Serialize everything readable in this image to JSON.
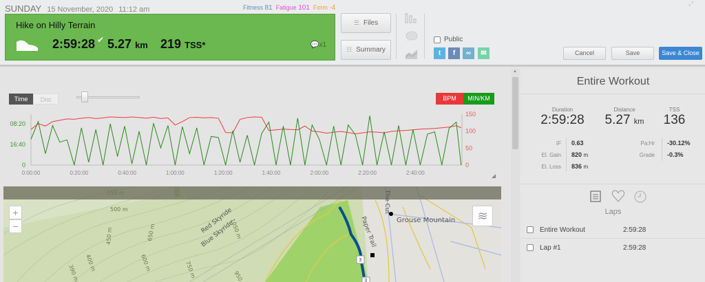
{
  "header": {
    "day": "SUNDAY",
    "date": "15 November, 2020",
    "time": "11:12 am",
    "fitness_label": "Fitness",
    "fitness": "81",
    "fatigue_label": "Fatigue",
    "fatigue": "101",
    "form_label": "Form",
    "form": "-4",
    "colors": {
      "fitness": "#6a8fb5",
      "fatigue": "#e44fd8",
      "form": "#f0a030"
    }
  },
  "workout": {
    "title": "Hike on Hilly Terrain",
    "duration": "2:59:28",
    "distance": "5.27",
    "distance_unit": "km",
    "tss": "219",
    "tss_unit": "TSS*",
    "comments": "x1",
    "card_color": "#6ab84f",
    "sport_icon": "shoe-icon"
  },
  "toolbar": {
    "files": "Files",
    "summary": "Summary",
    "public": "Public",
    "cancel": "Cancel",
    "save": "Save",
    "save_close": "Save & Close"
  },
  "chart_controls": {
    "time": "Time",
    "dist": "Dist",
    "bpm": "BPM",
    "pace": "MIN/KM"
  },
  "chart_data": {
    "type": "line",
    "xlabel": "",
    "x_ticks": [
      "0:00:00",
      "0:20:00",
      "0:40:00",
      "1:00:00",
      "1:20:00",
      "1:40:00",
      "2:00:00",
      "2:20:00",
      "2:40:00"
    ],
    "x_minutes": [
      0,
      3,
      6,
      9,
      12,
      15,
      18,
      21,
      24,
      27,
      30,
      33,
      36,
      39,
      42,
      45,
      48,
      51,
      54,
      57,
      60,
      63,
      66,
      69,
      72,
      75,
      78,
      81,
      84,
      87,
      90,
      93,
      96,
      99,
      102,
      105,
      108,
      111,
      114,
      117,
      120,
      123,
      126,
      129,
      132,
      135,
      138,
      141,
      144,
      147,
      150,
      153,
      156,
      159,
      162,
      165,
      168,
      171,
      174,
      177,
      179
    ],
    "left_axis": {
      "label": "MIN/KM",
      "ticks": [
        "0",
        "16:40",
        "08:20"
      ],
      "color": "#2a8a1a"
    },
    "right_axis": {
      "label": "BPM",
      "ticks": [
        "0",
        "50",
        "100",
        "150"
      ],
      "ylim": [
        0,
        150
      ],
      "color": "#e84040"
    },
    "series": [
      {
        "name": "BPM",
        "color": "#f03a3a",
        "values": [
          105,
          122,
          115,
          128,
          132,
          136,
          135,
          138,
          140,
          137,
          139,
          142,
          141,
          140,
          142,
          140,
          138,
          141,
          137,
          139,
          118,
          128,
          140,
          141,
          139,
          140,
          138,
          96,
          95,
          135,
          140,
          142,
          141,
          102,
          104,
          106,
          105,
          104,
          115,
          100,
          98,
          94,
          97,
          99,
          96,
          92,
          95,
          98,
          97,
          95,
          99,
          101,
          102,
          104,
          106,
          107,
          108,
          110,
          112,
          116,
          110
        ]
      },
      {
        "name": "MIN/KM",
        "color": "#2a8a1a",
        "speed_kmh": [
          4.5,
          7.6,
          2.0,
          6.9,
          4.0,
          4.4,
          0,
          6.5,
          0.5,
          6.2,
          0,
          7.2,
          1.5,
          6.8,
          0.2,
          5.9,
          0,
          7.3,
          3.0,
          6.9,
          0,
          6.7,
          2.0,
          6.5,
          0,
          5.0,
          4.8,
          0,
          6.0,
          0.5,
          5.2,
          0,
          5.5,
          7.5,
          0,
          6.8,
          0,
          8.2,
          0,
          7.0,
          4.5,
          0,
          6.8,
          0,
          7.0,
          5.3,
          0,
          8.6,
          0,
          5.8,
          0,
          6.9,
          0,
          6.2,
          0,
          5.4,
          5.8,
          0,
          6.4,
          7.5,
          0
        ]
      }
    ]
  },
  "map": {
    "labels": [
      "550 m",
      "500 m",
      "850 m",
      "450 m",
      "650 m",
      "600 m",
      "400 m",
      "390 m",
      "750 m",
      "950 m",
      "1050 m",
      "Red Skyride",
      "Blue Skyride",
      "Paper Trail",
      "The Cut",
      "Grouse Mountain"
    ],
    "markers": [
      "3",
      "3"
    ],
    "zoom_in": "+",
    "zoom_out": "−",
    "route_color": "#0a4f8f"
  },
  "summary": {
    "title": "Entire Workout",
    "duration_label": "Duration",
    "duration": "2:59:28",
    "distance_label": "Distance",
    "distance": "5.27",
    "distance_unit": "km",
    "tss_label": "TSS",
    "tss": "136",
    "if_label": "IF",
    "if": "0.63",
    "gain_label": "El. Gain",
    "gain": "820",
    "gain_unit": "m",
    "loss_label": "El. Loss",
    "loss": "836",
    "loss_unit": "m",
    "pahr_label": "Pa:Hr",
    "pahr": "-30.12%",
    "grade_label": "Grade",
    "grade": "-0.3%",
    "laps_title": "Laps",
    "laps": [
      {
        "name": "Entire Workout",
        "time": "2:59:28"
      },
      {
        "name": "Lap #1",
        "time": "2:59:28"
      }
    ]
  }
}
